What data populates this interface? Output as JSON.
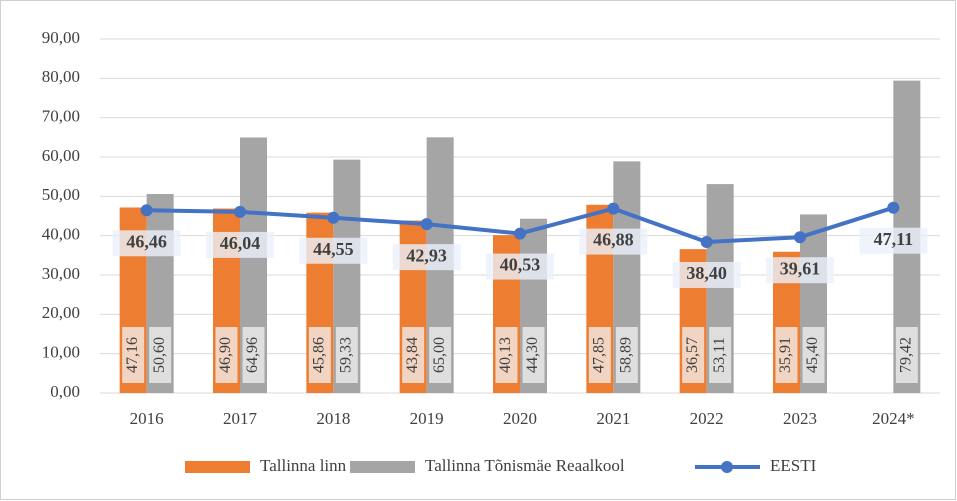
{
  "chart_data": {
    "type": "bar",
    "categories": [
      "2016",
      "2017",
      "2018",
      "2019",
      "2020",
      "2021",
      "2022",
      "2023",
      "2024*"
    ],
    "series": [
      {
        "name": "Tallinna linn",
        "type": "bar",
        "color": "#ed7d31",
        "values": [
          47.16,
          46.9,
          45.86,
          43.84,
          40.13,
          47.85,
          36.57,
          35.91,
          null
        ],
        "value_labels": [
          "47,16",
          "46,90",
          "45,86",
          "43,84",
          "40,13",
          "47,85",
          "36,57",
          "35,91",
          null
        ]
      },
      {
        "name": "Tallinna Tõnismäe Reaalkool",
        "type": "bar",
        "color": "#a5a5a5",
        "values": [
          50.6,
          64.96,
          59.33,
          65.0,
          44.3,
          58.89,
          53.11,
          45.4,
          79.42
        ],
        "value_labels": [
          "50,60",
          "64,96",
          "59,33",
          "65,00",
          "44,30",
          "58,89",
          "53,11",
          "45,40",
          "79,42"
        ]
      },
      {
        "name": "EESTI",
        "type": "line",
        "color": "#4472c4",
        "values": [
          46.46,
          46.04,
          44.55,
          42.93,
          40.53,
          46.88,
          38.4,
          39.61,
          47.11
        ],
        "value_labels": [
          "46,46",
          "46,04",
          "44,55",
          "42,93",
          "40,53",
          "46,88",
          "38,40",
          "39,61",
          "47,11"
        ]
      }
    ],
    "ylim": [
      0,
      90
    ],
    "yticks": [
      {
        "value": 0,
        "label": "0,00"
      },
      {
        "value": 10,
        "label": "10,00"
      },
      {
        "value": 20,
        "label": "20,00"
      },
      {
        "value": 30,
        "label": "30,00"
      },
      {
        "value": 40,
        "label": "40,00"
      },
      {
        "value": 50,
        "label": "50,00"
      },
      {
        "value": 60,
        "label": "60,00"
      },
      {
        "value": 70,
        "label": "70,00"
      },
      {
        "value": 80,
        "label": "80,00"
      },
      {
        "value": 90,
        "label": "90,00"
      }
    ],
    "grid": true,
    "legend": "bottom"
  }
}
